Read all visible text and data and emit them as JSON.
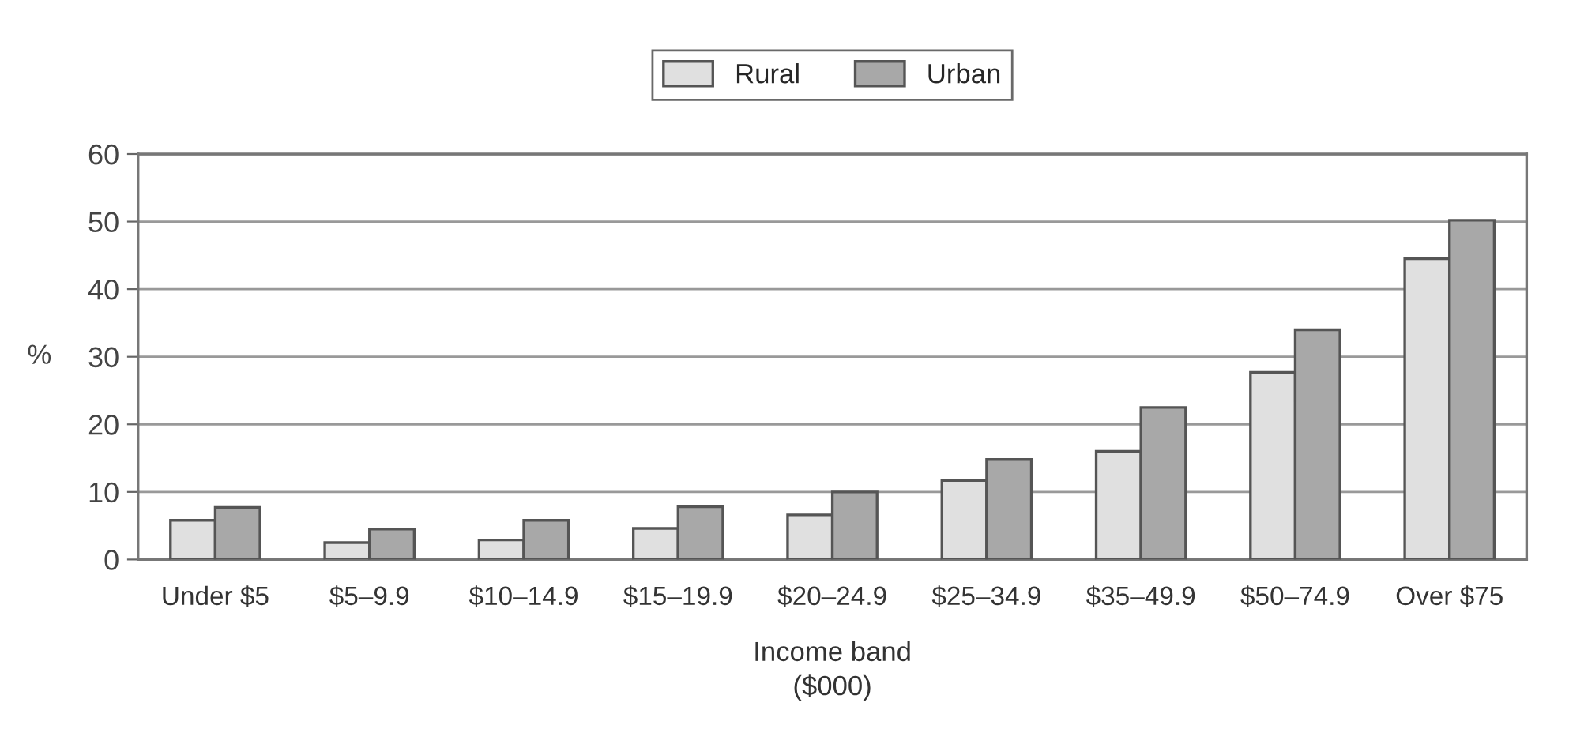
{
  "chart_data": {
    "type": "bar",
    "categories": [
      "Under $5",
      "$5–9.9",
      "$10–14.9",
      "$15–19.9",
      "$20–24.9",
      "$25–34.9",
      "$35–49.9",
      "$50–74.9",
      "Over $75"
    ],
    "series": [
      {
        "name": "Rural",
        "color": "#e0e0e0",
        "values": [
          5.8,
          2.5,
          2.9,
          4.6,
          6.6,
          11.7,
          16.0,
          27.7,
          44.5
        ]
      },
      {
        "name": "Urban",
        "color": "#a8a8a8",
        "values": [
          7.7,
          4.5,
          5.8,
          7.8,
          10.0,
          14.8,
          22.5,
          34.0,
          50.2
        ]
      }
    ],
    "xlabel": "Income band\n($000)",
    "ylabel": "%",
    "ylim": [
      0,
      60
    ],
    "yticks": [
      0,
      10,
      20,
      30,
      40,
      50,
      60
    ],
    "grid": "y",
    "legend": "top"
  }
}
